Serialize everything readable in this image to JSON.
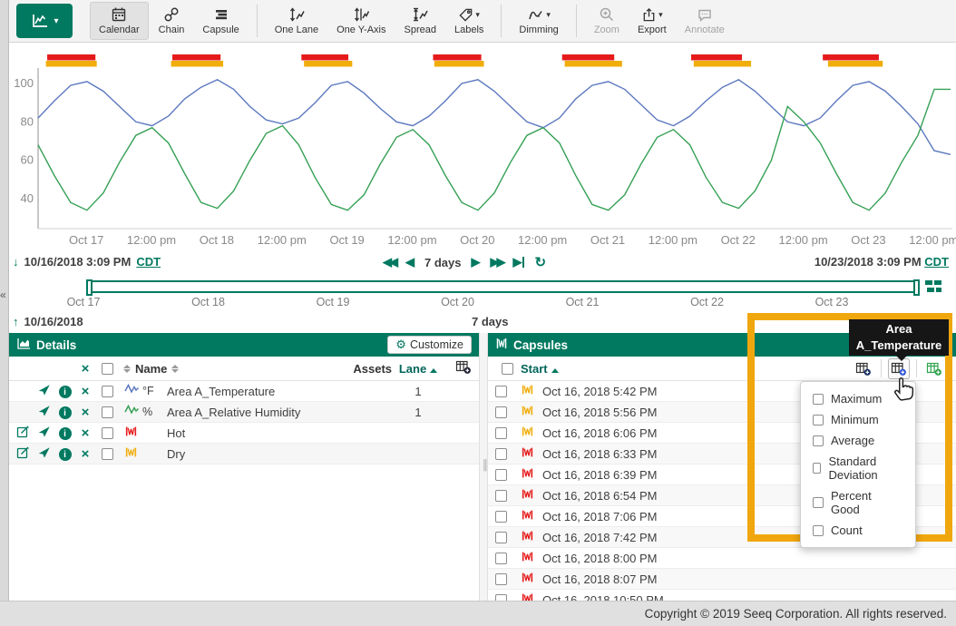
{
  "glyphs": {
    "caret_down": "▾",
    "collapse": "«",
    "down_arrow": "↓",
    "up_arrow": "↑",
    "fast_back": "◀◀",
    "back": "◀",
    "fwd": "▶",
    "fast_fwd": "▶▶",
    "step_end": "▶",
    "refresh": "↻",
    "close": "×",
    "info": "i",
    "gear": "⚙",
    "grip": "║"
  },
  "toolbar": {
    "items": [
      {
        "id": "calendar",
        "label": "Calendar",
        "selected": true,
        "enabled": true
      },
      {
        "id": "chain",
        "label": "Chain",
        "selected": false,
        "enabled": true
      },
      {
        "id": "capsule",
        "label": "Capsule",
        "selected": false,
        "enabled": true
      },
      {
        "id": "one-lane",
        "label": "One Lane",
        "selected": false,
        "enabled": true
      },
      {
        "id": "one-y-axis",
        "label": "One Y-Axis",
        "selected": false,
        "enabled": true
      },
      {
        "id": "spread",
        "label": "Spread",
        "selected": false,
        "enabled": true
      },
      {
        "id": "labels",
        "label": "Labels",
        "selected": false,
        "enabled": true,
        "caret": true
      },
      {
        "id": "dimming",
        "label": "Dimming",
        "selected": false,
        "enabled": true,
        "caret": true
      },
      {
        "id": "zoom",
        "label": "Zoom",
        "selected": false,
        "enabled": false
      },
      {
        "id": "export",
        "label": "Export",
        "selected": false,
        "enabled": true,
        "caret": true
      },
      {
        "id": "annotate",
        "label": "Annotate",
        "selected": false,
        "enabled": false
      }
    ]
  },
  "chart_data": {
    "type": "line",
    "x_axis": "time, 10/16/2018 3:09 PM CDT to 10/23/2018 3:09 PM CDT",
    "x_days": 7,
    "t_step": 0.125,
    "yticks": [
      100,
      80,
      60,
      40
    ],
    "ylim": [
      24,
      108
    ],
    "grid": false,
    "x_ticks": [
      {
        "t": 0.37,
        "label": "Oct 17"
      },
      {
        "t": 0.87,
        "label": "12:00 pm"
      },
      {
        "t": 1.37,
        "label": "Oct 18"
      },
      {
        "t": 1.87,
        "label": "12:00 pm"
      },
      {
        "t": 2.37,
        "label": "Oct 19"
      },
      {
        "t": 2.87,
        "label": "12:00 pm"
      },
      {
        "t": 3.37,
        "label": "Oct 20"
      },
      {
        "t": 3.87,
        "label": "12:00 pm"
      },
      {
        "t": 4.37,
        "label": "Oct 21"
      },
      {
        "t": 4.87,
        "label": "12:00 pm"
      },
      {
        "t": 5.37,
        "label": "Oct 22"
      },
      {
        "t": 5.87,
        "label": "12:00 pm"
      },
      {
        "t": 6.37,
        "label": "Oct 23"
      },
      {
        "t": 6.87,
        "label": "12:00 pm"
      }
    ],
    "series": [
      {
        "name": "Area A_Temperature",
        "unit": "°F",
        "color": "#5C78BF",
        "values": [
          82,
          91,
          99,
          101,
          96,
          88,
          80,
          78,
          83,
          92,
          98,
          102,
          97,
          88,
          81,
          79,
          82,
          90,
          99,
          101,
          95,
          87,
          80,
          78,
          83,
          91,
          100,
          102,
          96,
          88,
          80,
          77,
          82,
          92,
          99,
          101,
          97,
          89,
          81,
          78,
          83,
          91,
          98,
          102,
          96,
          88,
          80,
          78,
          82,
          91,
          99,
          101,
          96,
          88,
          79,
          65,
          63
        ]
      },
      {
        "name": "Area A_Relative Humidity",
        "unit": "%",
        "color": "#35A054",
        "values": [
          68,
          52,
          38,
          34,
          43,
          59,
          73,
          77,
          69,
          53,
          38,
          35,
          44,
          60,
          74,
          78,
          68,
          51,
          37,
          34,
          42,
          58,
          72,
          76,
          68,
          52,
          38,
          34,
          43,
          59,
          73,
          77,
          69,
          52,
          37,
          34,
          42,
          58,
          72,
          76,
          68,
          51,
          38,
          35,
          44,
          60,
          88,
          80,
          69,
          53,
          38,
          34,
          43,
          59,
          73,
          97,
          97
        ]
      }
    ],
    "capsule_lanes": [
      {
        "name": "Hot",
        "color": "#E51A1A",
        "ranges": [
          [
            0.07,
            0.44
          ],
          [
            1.03,
            1.4
          ],
          [
            2.02,
            2.38
          ],
          [
            3.03,
            3.4
          ],
          [
            4.02,
            4.42
          ],
          [
            5.01,
            5.4
          ],
          [
            6.02,
            6.45
          ]
        ]
      },
      {
        "name": "Dry",
        "color": "#F0AD0B",
        "ranges": [
          [
            0.06,
            0.45
          ],
          [
            1.02,
            1.42
          ],
          [
            2.04,
            2.41
          ],
          [
            3.04,
            3.42
          ],
          [
            4.04,
            4.48
          ],
          [
            5.03,
            5.47
          ],
          [
            6.06,
            6.48
          ]
        ]
      }
    ]
  },
  "daterange": {
    "start": "10/16/2018 3:09 PM",
    "start_tz": "CDT",
    "end": "10/23/2018 3:09 PM",
    "end_tz": "CDT",
    "duration": "7 days"
  },
  "timeline": {
    "labels": [
      "Oct 17",
      "Oct 18",
      "Oct 19",
      "Oct 20",
      "Oct 21",
      "Oct 22",
      "Oct 23"
    ],
    "start_date": "10/16/2018",
    "end_date": "10/23/2018",
    "duration": "7 days"
  },
  "details": {
    "title": "Details",
    "customize_label": "Customize",
    "columns": {
      "name": "Name",
      "assets": "Assets",
      "lane": "Lane"
    },
    "rows": [
      {
        "name": "Area A_Temperature",
        "unit": "°F",
        "lane": "1",
        "color": "#5C78BF",
        "is_signal": true,
        "is_condition": false,
        "editable": false
      },
      {
        "name": "Area A_Relative Humidity",
        "unit": "%",
        "lane": "1",
        "color": "#35A054",
        "is_signal": true,
        "is_condition": false,
        "editable": false
      },
      {
        "name": "Hot",
        "unit": "",
        "lane": "",
        "color": "#E51A1A",
        "is_signal": false,
        "is_condition": true,
        "editable": true
      },
      {
        "name": "Dry",
        "unit": "",
        "lane": "",
        "color": "#F0AD0B",
        "is_signal": false,
        "is_condition": true,
        "editable": true
      }
    ]
  },
  "capsules": {
    "title": "Capsules",
    "start_column": "Start",
    "rows": [
      {
        "color": "#F0AD0B",
        "start": "Oct 16, 2018 5:42 PM"
      },
      {
        "color": "#F0AD0B",
        "start": "Oct 16, 2018 5:56 PM"
      },
      {
        "color": "#F0AD0B",
        "start": "Oct 16, 2018 6:06 PM"
      },
      {
        "color": "#E51A1A",
        "start": "Oct 16, 2018 6:33 PM"
      },
      {
        "color": "#E51A1A",
        "start": "Oct 16, 2018 6:39 PM"
      },
      {
        "color": "#E51A1A",
        "start": "Oct 16, 2018 6:54 PM"
      },
      {
        "color": "#E51A1A",
        "start": "Oct 16, 2018 7:06 PM"
      },
      {
        "color": "#E51A1A",
        "start": "Oct 16, 2018 7:42 PM"
      },
      {
        "color": "#E51A1A",
        "start": "Oct 16, 2018 8:00 PM"
      },
      {
        "color": "#E51A1A",
        "start": "Oct 16, 2018 8:07 PM"
      },
      {
        "color": "#E51A1A",
        "start": "Oct 16, 2018 10:50 PM"
      }
    ]
  },
  "stats_menu": {
    "items": [
      "Maximum",
      "Minimum",
      "Average",
      "Standard Deviation",
      "Percent Good",
      "Count"
    ]
  },
  "tooltip": {
    "line1": "Area",
    "line2": "A_Temperature"
  },
  "footer": {
    "text": "Copyright © 2019 Seeq Corporation. All rights reserved."
  },
  "colors": {
    "accent": "#007960",
    "highlight": "#F0A70E",
    "hot": "#E51A1A",
    "dry": "#F0AD0B",
    "temperature": "#5C78BF",
    "humidity": "#35A054"
  }
}
